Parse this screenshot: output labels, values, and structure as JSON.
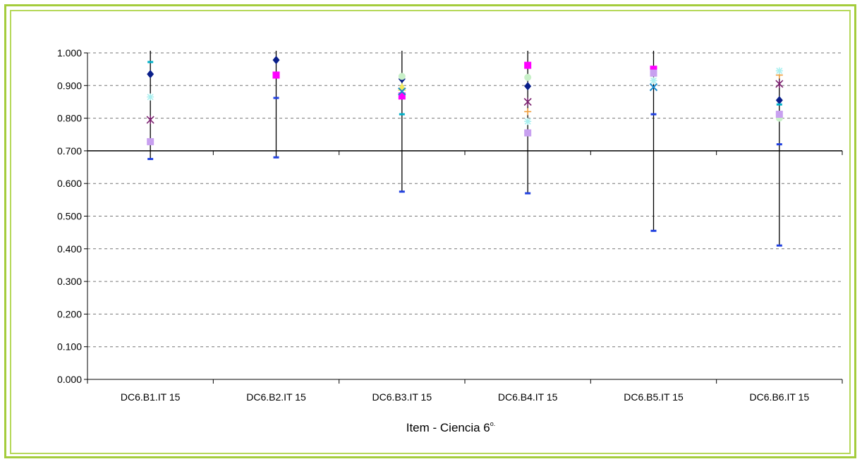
{
  "chart_data": {
    "type": "scatter",
    "xlabel": "Item - Ciencia 6",
    "xlabel_sup": "o.",
    "categories": [
      "DC6.B1.IT 15",
      "DC6.B2.IT 15",
      "DC6.B3.IT 15",
      "DC6.B4.IT 15",
      "DC6.B5.IT 15",
      "DC6.B6.IT 15"
    ],
    "ylim": [
      0,
      1
    ],
    "yticks": [
      "0.000",
      "0.100",
      "0.200",
      "0.300",
      "0.400",
      "0.500",
      "0.600",
      "0.700",
      "0.800",
      "0.900",
      "1.000"
    ],
    "grid": true,
    "reference_line": 0.7,
    "ranges": [
      {
        "low": 0.675,
        "high": 1.0
      },
      {
        "low": 0.68,
        "high": 1.0
      },
      {
        "low": 0.575,
        "high": 1.0
      },
      {
        "low": 0.57,
        "high": 1.0
      },
      {
        "low": 0.455,
        "high": 1.0
      },
      {
        "low": 0.41,
        "high": 0.93
      }
    ],
    "series": [
      {
        "marker": "diamond",
        "color": "#0a1f8a",
        "values": [
          0.935,
          0.978,
          0.92,
          0.898,
          0.94,
          0.855
        ]
      },
      {
        "marker": "square",
        "color": "#ff00ff",
        "values": [
          null,
          0.932,
          0.868,
          0.962,
          0.95,
          null
        ]
      },
      {
        "marker": "triangle",
        "color": "#f2e95a",
        "values": [
          null,
          null,
          0.895,
          null,
          null,
          null
        ]
      },
      {
        "marker": "x",
        "color": "#1a8acc",
        "values": [
          null,
          null,
          0.882,
          null,
          0.895,
          null
        ]
      },
      {
        "marker": "star",
        "color": "#7a1f6e",
        "values": [
          0.795,
          null,
          null,
          0.85,
          null,
          0.905
        ]
      },
      {
        "marker": "circle",
        "color": "#c8f0c8",
        "values": [
          null,
          null,
          0.928,
          0.925,
          null,
          0.8
        ]
      },
      {
        "marker": "plus",
        "color": "#f0a040",
        "values": [
          null,
          null,
          null,
          0.82,
          null,
          0.932
        ]
      },
      {
        "marker": "dash",
        "color": "#00b0c8",
        "values": [
          0.972,
          null,
          0.812,
          null,
          null,
          0.842
        ]
      },
      {
        "marker": "square",
        "color": "#c8a0f0",
        "values": [
          0.728,
          null,
          null,
          0.755,
          0.938,
          0.812
        ]
      },
      {
        "marker": "dash",
        "color": "#2040e0",
        "values": [
          0.675,
          0.68,
          0.575,
          0.57,
          0.455,
          0.41
        ]
      },
      {
        "marker": "dash",
        "color": "#2040e0",
        "values": [
          null,
          0.862,
          null,
          null,
          0.812,
          0.72
        ]
      },
      {
        "marker": "asterisk",
        "color": "#aaf0f0",
        "values": [
          0.865,
          null,
          null,
          0.79,
          0.915,
          0.945
        ]
      }
    ]
  }
}
